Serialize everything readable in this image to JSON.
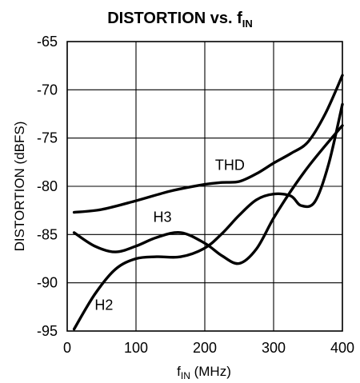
{
  "chart_data": {
    "type": "line",
    "title_main": "DISTORTION vs. f",
    "title_sub": "IN",
    "xlabel_main": "f",
    "xlabel_sub": "IN",
    "xlabel_tail": " (MHz)",
    "ylabel": "DISTORTION (dBFS)",
    "xlim": [
      0,
      400
    ],
    "ylim": [
      -95,
      -65
    ],
    "x_ticks": [
      0,
      100,
      200,
      300,
      400
    ],
    "y_ticks": [
      -65,
      -70,
      -75,
      -80,
      -85,
      -90,
      -95
    ],
    "grid": true,
    "series": [
      {
        "name": "THD",
        "x": [
          10,
          50,
          100,
          150,
          200,
          225,
          250,
          275,
          300,
          325,
          350,
          375,
          400
        ],
        "y": [
          -82.7,
          -82.4,
          -81.5,
          -80.5,
          -79.8,
          -79.6,
          -79.5,
          -78.7,
          -77.6,
          -76.6,
          -75.4,
          -72.5,
          -68.5
        ]
      },
      {
        "name": "H3",
        "x": [
          10,
          40,
          70,
          100,
          130,
          165,
          200,
          225,
          250,
          275,
          300,
          325,
          350,
          375,
          400
        ],
        "y": [
          -84.8,
          -86.2,
          -86.8,
          -86.2,
          -85.3,
          -84.8,
          -85.9,
          -87.2,
          -88.0,
          -86.5,
          -83.3,
          -80.5,
          -78.0,
          -75.8,
          -73.7
        ]
      },
      {
        "name": "H2",
        "x": [
          10,
          40,
          70,
          100,
          130,
          165,
          200,
          225,
          250,
          275,
          300,
          325,
          340,
          360,
          380,
          400
        ],
        "y": [
          -94.8,
          -91.2,
          -88.6,
          -87.5,
          -87.3,
          -87.3,
          -86.4,
          -84.9,
          -83.0,
          -81.4,
          -80.8,
          -81.0,
          -82.0,
          -81.6,
          -77.7,
          -71.5
        ]
      }
    ],
    "series_labels": [
      {
        "name": "THD",
        "x": 215,
        "y": -78.3
      },
      {
        "name": "H3",
        "x": 125,
        "y": -83.7
      },
      {
        "name": "H2",
        "x": 40,
        "y": -92.8
      }
    ]
  }
}
